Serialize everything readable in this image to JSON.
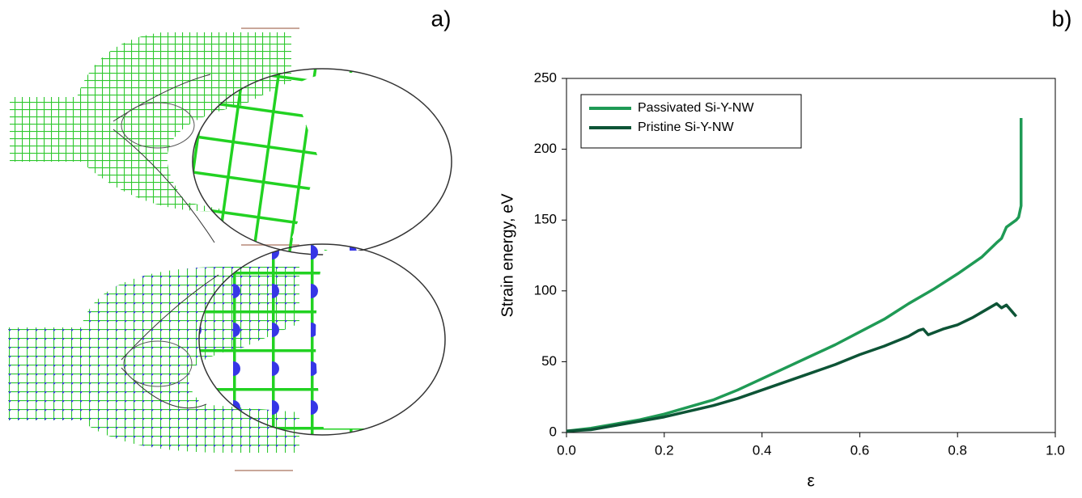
{
  "panel_labels": [
    "a)",
    "b)"
  ],
  "chart_data": {
    "type": "line",
    "xlabel": "ε",
    "ylabel": "Strain energy, eV",
    "xlim": [
      0,
      1
    ],
    "ylim": [
      0,
      250
    ],
    "xticks": [
      {
        "value": 0,
        "label": "0.0"
      },
      0.2,
      0.4,
      0.6,
      0.8,
      {
        "value": 1,
        "label": "1.0"
      }
    ],
    "yticks": [
      0,
      50,
      100,
      150,
      200,
      250
    ],
    "legend": "upper left",
    "series": [
      {
        "name": "Passivated Si-Y-NW",
        "color": "#1f9a55",
        "x": [
          0,
          0.05,
          0.1,
          0.15,
          0.2,
          0.23,
          0.25,
          0.3,
          0.35,
          0.4,
          0.45,
          0.5,
          0.55,
          0.6,
          0.65,
          0.7,
          0.75,
          0.8,
          0.85,
          0.88,
          0.89,
          0.9,
          0.92,
          0.925,
          0.93,
          0.93
        ],
        "values": [
          1,
          3,
          6,
          9,
          13,
          16,
          18,
          23,
          30,
          38,
          46,
          54,
          62,
          71,
          80,
          91,
          101,
          112,
          124,
          134,
          137,
          145,
          150,
          152,
          160,
          222
        ]
      },
      {
        "name": "Pristine Si-Y-NW",
        "color": "#0d5436",
        "x": [
          0,
          0.05,
          0.1,
          0.15,
          0.2,
          0.25,
          0.3,
          0.35,
          0.4,
          0.45,
          0.5,
          0.55,
          0.6,
          0.65,
          0.7,
          0.72,
          0.73,
          0.74,
          0.77,
          0.8,
          0.83,
          0.86,
          0.88,
          0.89,
          0.9,
          0.91,
          0.92
        ],
        "values": [
          1,
          2,
          5,
          8,
          11,
          15,
          19,
          24,
          30,
          36,
          42,
          48,
          55,
          61,
          68,
          72,
          73,
          69,
          73,
          76,
          81,
          87,
          91,
          88,
          90,
          86,
          82
        ]
      }
    ]
  }
}
